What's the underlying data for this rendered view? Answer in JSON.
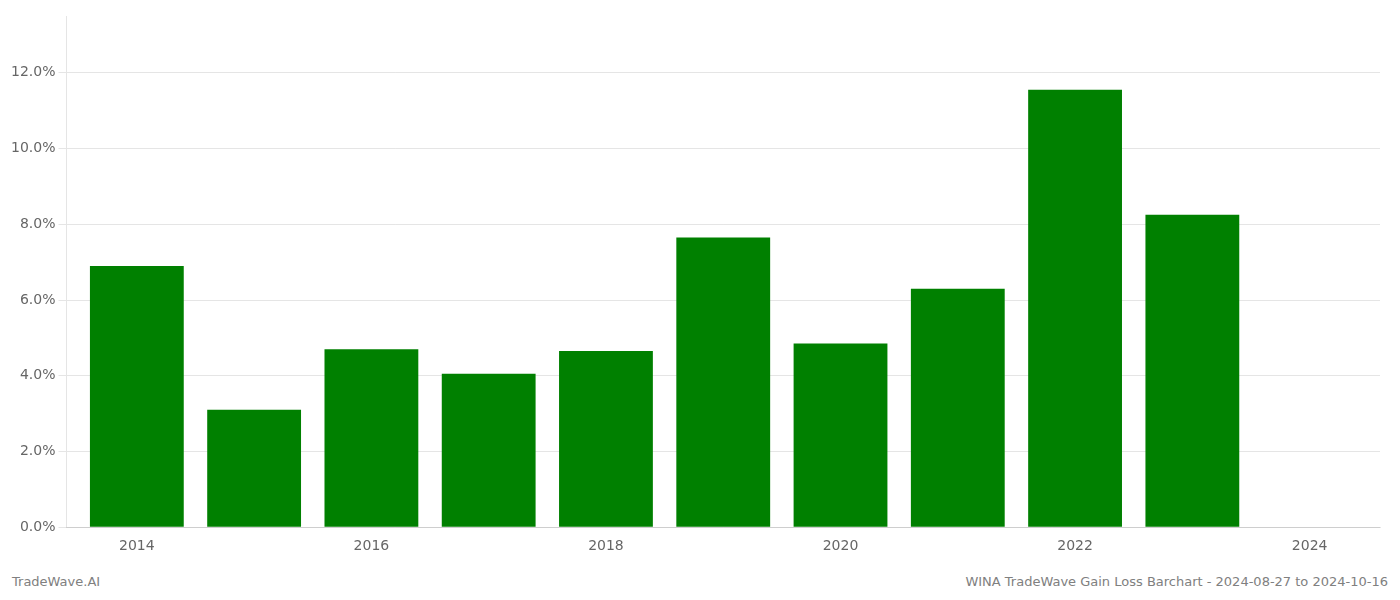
{
  "chart_data": {
    "type": "bar",
    "x": [
      2014,
      2015,
      2016,
      2017,
      2018,
      2019,
      2020,
      2021,
      2022,
      2023
    ],
    "values": [
      0.069,
      0.031,
      0.047,
      0.0405,
      0.0465,
      0.0765,
      0.0485,
      0.063,
      0.1155,
      0.0825
    ],
    "color": "#008000",
    "xlim": [
      2013.4,
      2024.6
    ],
    "xticks": [
      2014,
      2016,
      2018,
      2020,
      2022,
      2024
    ],
    "ylim": [
      0,
      0.135
    ],
    "yticks": [
      {
        "value": 0.0,
        "label": "0.0%"
      },
      {
        "value": 0.02,
        "label": "2.0%"
      },
      {
        "value": 0.04,
        "label": "4.0%"
      },
      {
        "value": 0.06,
        "label": "6.0%"
      },
      {
        "value": 0.08,
        "label": "8.0%"
      },
      {
        "value": 0.1,
        "label": "10.0%"
      },
      {
        "value": 0.12,
        "label": "12.0%"
      }
    ],
    "grid": true,
    "annotations": [
      "TradeWave.AI",
      "WINA TradeWave Gain Loss Barchart - 2024-08-27 to 2024-10-16"
    ]
  }
}
